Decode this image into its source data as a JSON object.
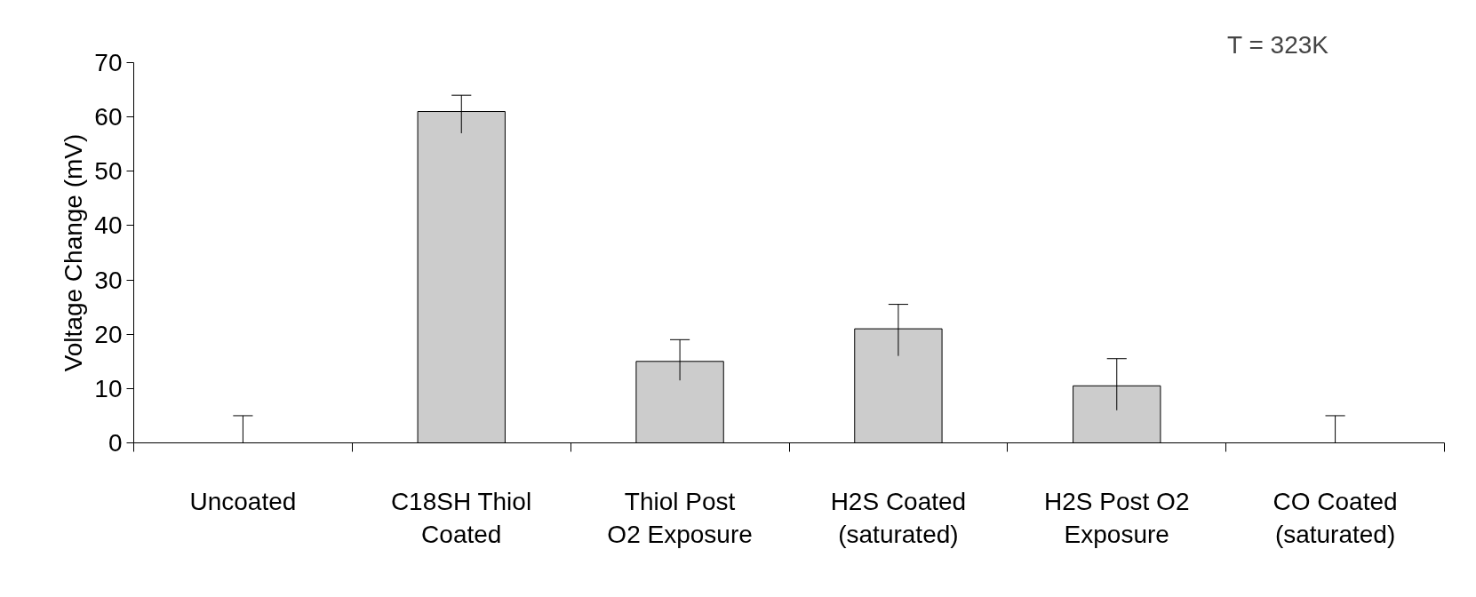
{
  "chart_data": {
    "type": "bar",
    "ylabel": "Voltage Change (mV)",
    "categories": [
      "Uncoated",
      "C18SH Thiol Coated",
      "Thiol Post O2 Exposure",
      "H2S Coated (saturated)",
      "H2S Post O2 Exposure",
      "CO Coated (saturated)"
    ],
    "values": [
      0,
      61,
      15,
      21,
      10.5,
      0
    ],
    "errors": [
      [
        0,
        5
      ],
      [
        57,
        64
      ],
      [
        11.5,
        19
      ],
      [
        16,
        25.5
      ],
      [
        6,
        15.5
      ],
      [
        0,
        5
      ]
    ],
    "color": "#cccccc",
    "ylim": [
      0,
      70
    ],
    "yticks": [
      0,
      10,
      20,
      30,
      40,
      50,
      60,
      70
    ],
    "grid": false,
    "annotations": [
      "T = 323K"
    ]
  }
}
